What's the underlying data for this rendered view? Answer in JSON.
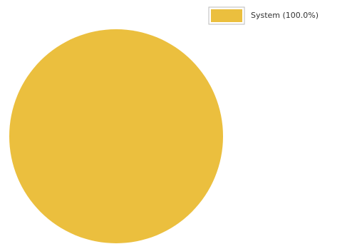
{
  "chart_data": {
    "type": "pie",
    "categories": [
      "System (100.0%)"
    ],
    "values": [
      100
    ],
    "colors": [
      "#ebbf3e"
    ]
  }
}
